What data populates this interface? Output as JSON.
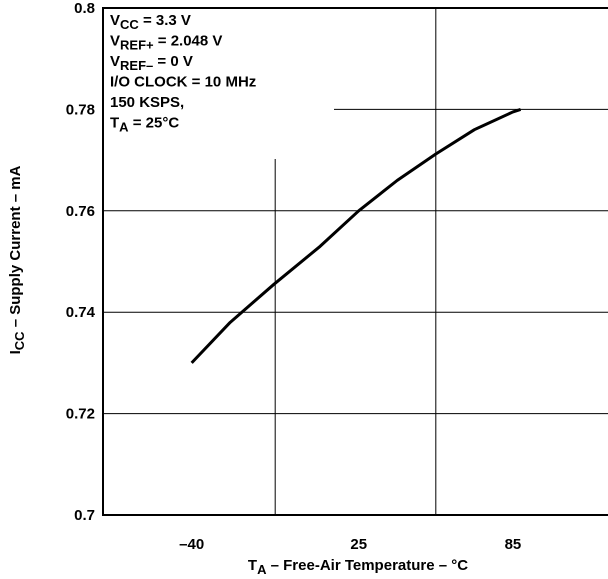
{
  "chart_data": {
    "type": "line",
    "x_label": [
      "T",
      "A",
      " – Free-Air Temperature – °C"
    ],
    "y_label": [
      "I",
      "CC",
      " – Supply Current – mA"
    ],
    "annotations": [
      [
        "V",
        "CC",
        " = 3.3 V"
      ],
      [
        "V",
        "REF+",
        " = 2.048 V"
      ],
      [
        "V",
        "REF–",
        " = 0 V"
      ],
      [
        "I/O CLOCK = 10 MHz"
      ],
      [
        "150 KSPS,"
      ],
      [
        "T",
        "A",
        " = 25°C"
      ]
    ],
    "x": [
      -40,
      -25,
      -8,
      10,
      25,
      40,
      55,
      70,
      85,
      88
    ],
    "series": [
      {
        "color": "#000000",
        "values": [
          0.73,
          0.738,
          0.7455,
          0.753,
          0.76,
          0.766,
          0.7712,
          0.776,
          0.7795,
          0.78
        ]
      }
    ],
    "xlim": [
      -74.5,
      122
    ],
    "xticks": [
      {
        "value": -40,
        "label": "–40"
      },
      25,
      85
    ],
    "xgrid": [
      -7.5,
      55
    ],
    "ylim": [
      0.7,
      0.8
    ],
    "yticks": [
      0.7,
      0.72,
      0.74,
      0.76,
      0.78,
      0.8
    ],
    "grid": true
  }
}
